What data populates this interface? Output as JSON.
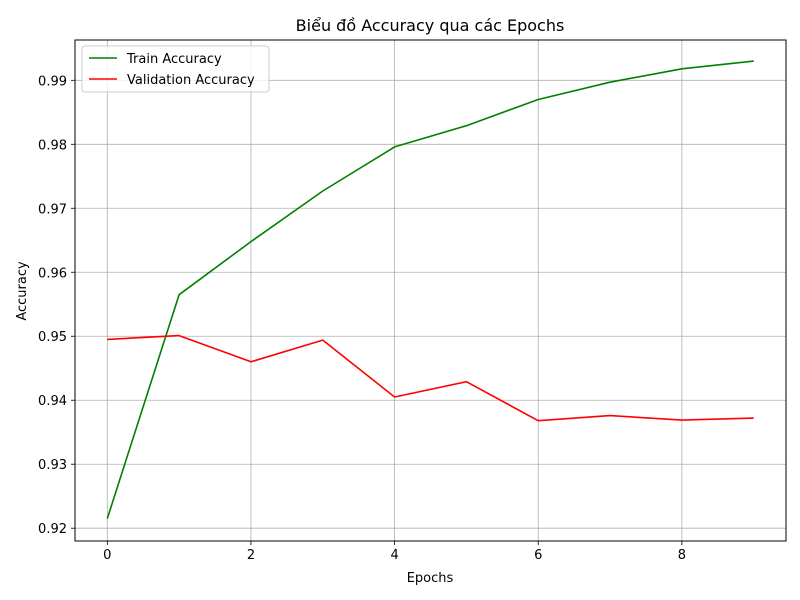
{
  "chart_data": {
    "type": "line",
    "title": "Biểu đồ Accuracy qua các Epochs",
    "xlabel": "Epochs",
    "ylabel": "Accuracy",
    "x": [
      0,
      1,
      2,
      3,
      4,
      5,
      6,
      7,
      8,
      9
    ],
    "xlim": [
      -0.45,
      9.45
    ],
    "ylim": [
      0.918,
      0.9963
    ],
    "x_ticks": [
      0,
      2,
      4,
      6,
      8
    ],
    "y_ticks": [
      0.92,
      0.93,
      0.94,
      0.95,
      0.96,
      0.97,
      0.98,
      0.99
    ],
    "x_tick_labels": [
      "0",
      "2",
      "4",
      "6",
      "8"
    ],
    "y_tick_labels": [
      "0.92",
      "0.93",
      "0.94",
      "0.95",
      "0.96",
      "0.97",
      "0.98",
      "0.99"
    ],
    "grid": true,
    "legend_position": "top-left",
    "series": [
      {
        "name": "Train Accuracy",
        "color": "#008000",
        "values": [
          0.9215,
          0.9565,
          0.9648,
          0.9727,
          0.9796,
          0.9829,
          0.987,
          0.9897,
          0.9918,
          0.993
        ]
      },
      {
        "name": "Validation Accuracy",
        "color": "#ff0000",
        "values": [
          0.9495,
          0.9501,
          0.946,
          0.9494,
          0.9405,
          0.9429,
          0.9368,
          0.9376,
          0.9369,
          0.9372
        ]
      }
    ]
  }
}
